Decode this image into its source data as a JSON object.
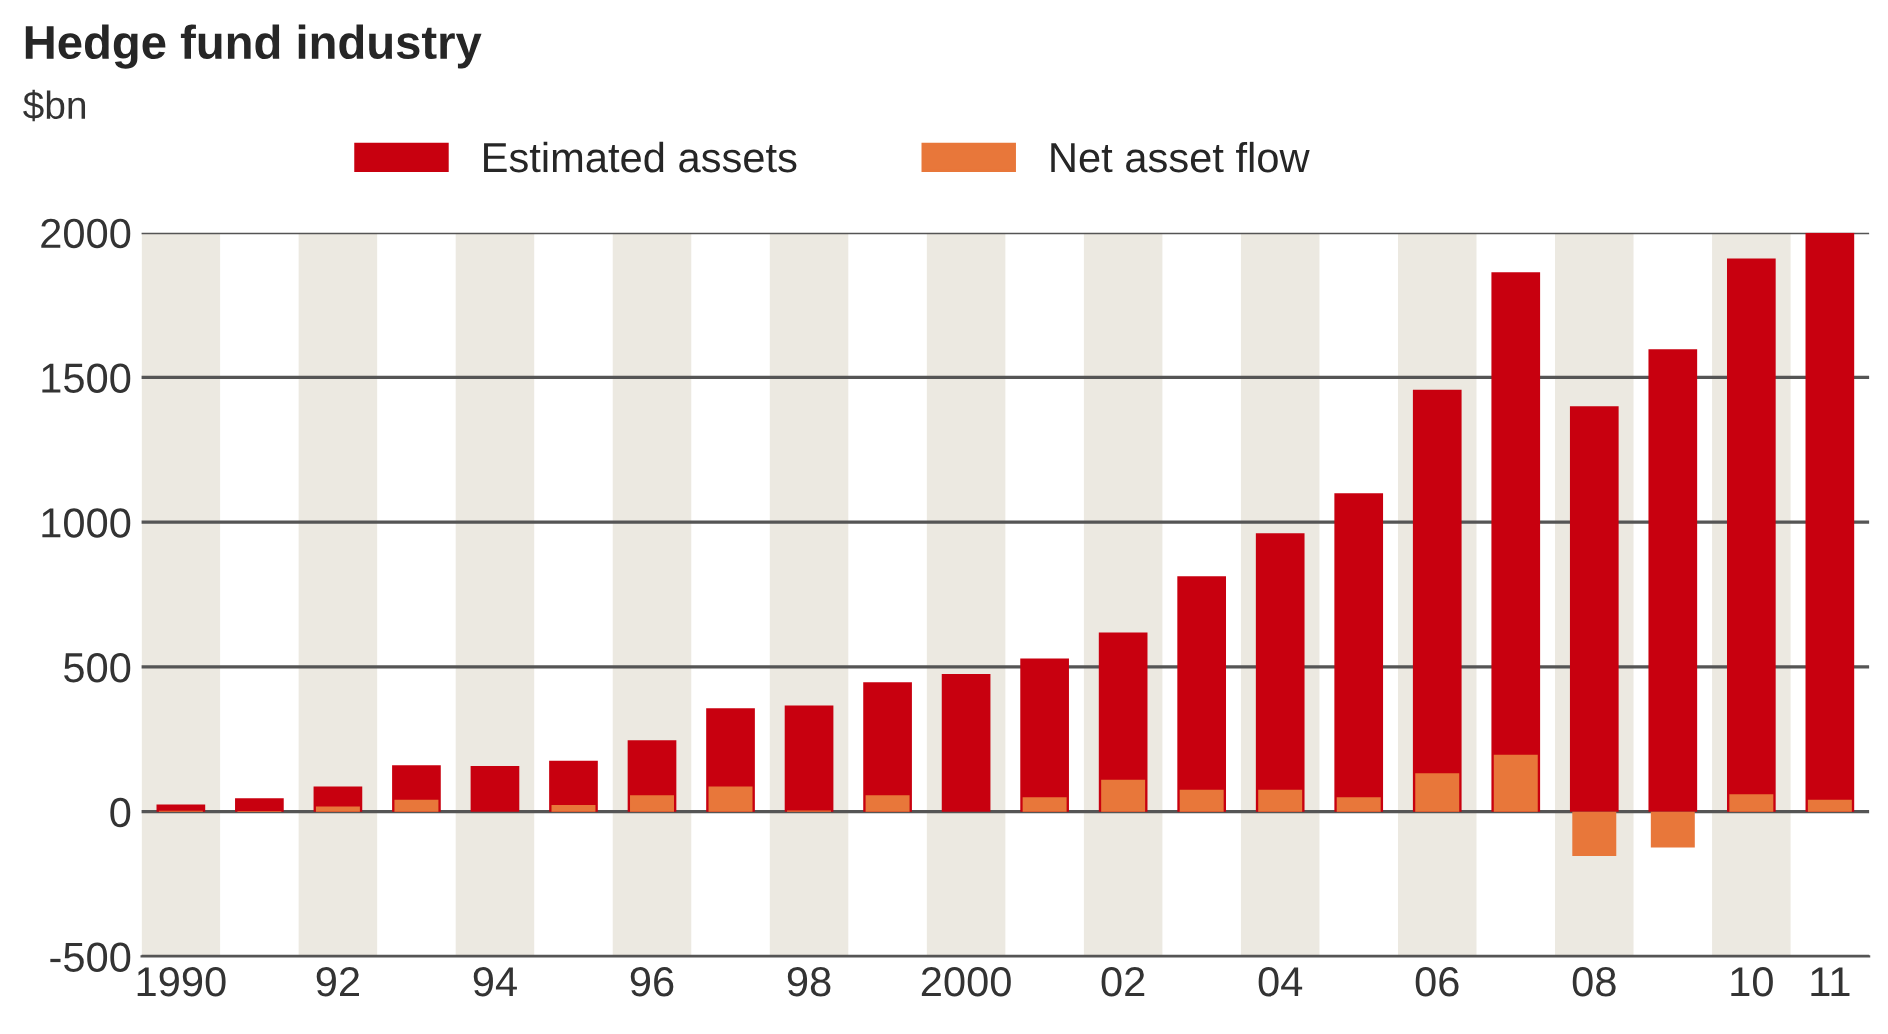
{
  "chart_data": {
    "type": "bar",
    "title": "Hedge fund industry",
    "ylabel": "$bn",
    "categories": [
      "1990",
      null,
      "92",
      null,
      "94",
      null,
      "96",
      null,
      "98",
      null,
      "2000",
      null,
      "02",
      null,
      "04",
      null,
      "06",
      null,
      "08",
      null,
      "10",
      "11"
    ],
    "series": [
      {
        "name": "Estimated assets",
        "color": "#c8000f",
        "values": [
          25,
          46,
          87,
          160,
          158,
          176,
          247,
          357,
          367,
          447,
          476,
          529,
          619,
          813,
          962,
          1100,
          1457,
          1863,
          1400,
          1597,
          1911,
          2000
        ]
      },
      {
        "name": "Net asset flow",
        "color": "#e8773a",
        "values": [
          3,
          2,
          18,
          41,
          null,
          23,
          57,
          87,
          4,
          57,
          null,
          50,
          110,
          76,
          76,
          50,
          133,
          197,
          -153,
          -124,
          60,
          41
        ]
      }
    ],
    "ylim": [
      -500,
      2000
    ],
    "yticks": [
      -500,
      0,
      500,
      1000,
      1500,
      2000
    ],
    "grid": "y",
    "legend": "top",
    "bands": [
      {
        "axis": "x",
        "from": "1990",
        "to": "1990",
        "color": "#ece9e1"
      },
      {
        "axis": "x",
        "from": "92",
        "to": "92",
        "color": "#ece9e1"
      },
      {
        "axis": "x",
        "from": "94",
        "to": "94",
        "color": "#ece9e1"
      },
      {
        "axis": "x",
        "from": "96",
        "to": "96",
        "color": "#ece9e1"
      },
      {
        "axis": "x",
        "from": "98",
        "to": "98",
        "color": "#ece9e1"
      },
      {
        "axis": "x",
        "from": "2000",
        "to": "2000",
        "color": "#ece9e1"
      },
      {
        "axis": "x",
        "from": "02",
        "to": "02",
        "color": "#ece9e1"
      },
      {
        "axis": "x",
        "from": "04",
        "to": "04",
        "color": "#ece9e1"
      },
      {
        "axis": "x",
        "from": "06",
        "to": "06",
        "color": "#ece9e1"
      },
      {
        "axis": "x",
        "from": "08",
        "to": "08",
        "color": "#ece9e1"
      },
      {
        "axis": "x",
        "from": "10",
        "to": "10",
        "color": "#ece9e1"
      }
    ]
  }
}
